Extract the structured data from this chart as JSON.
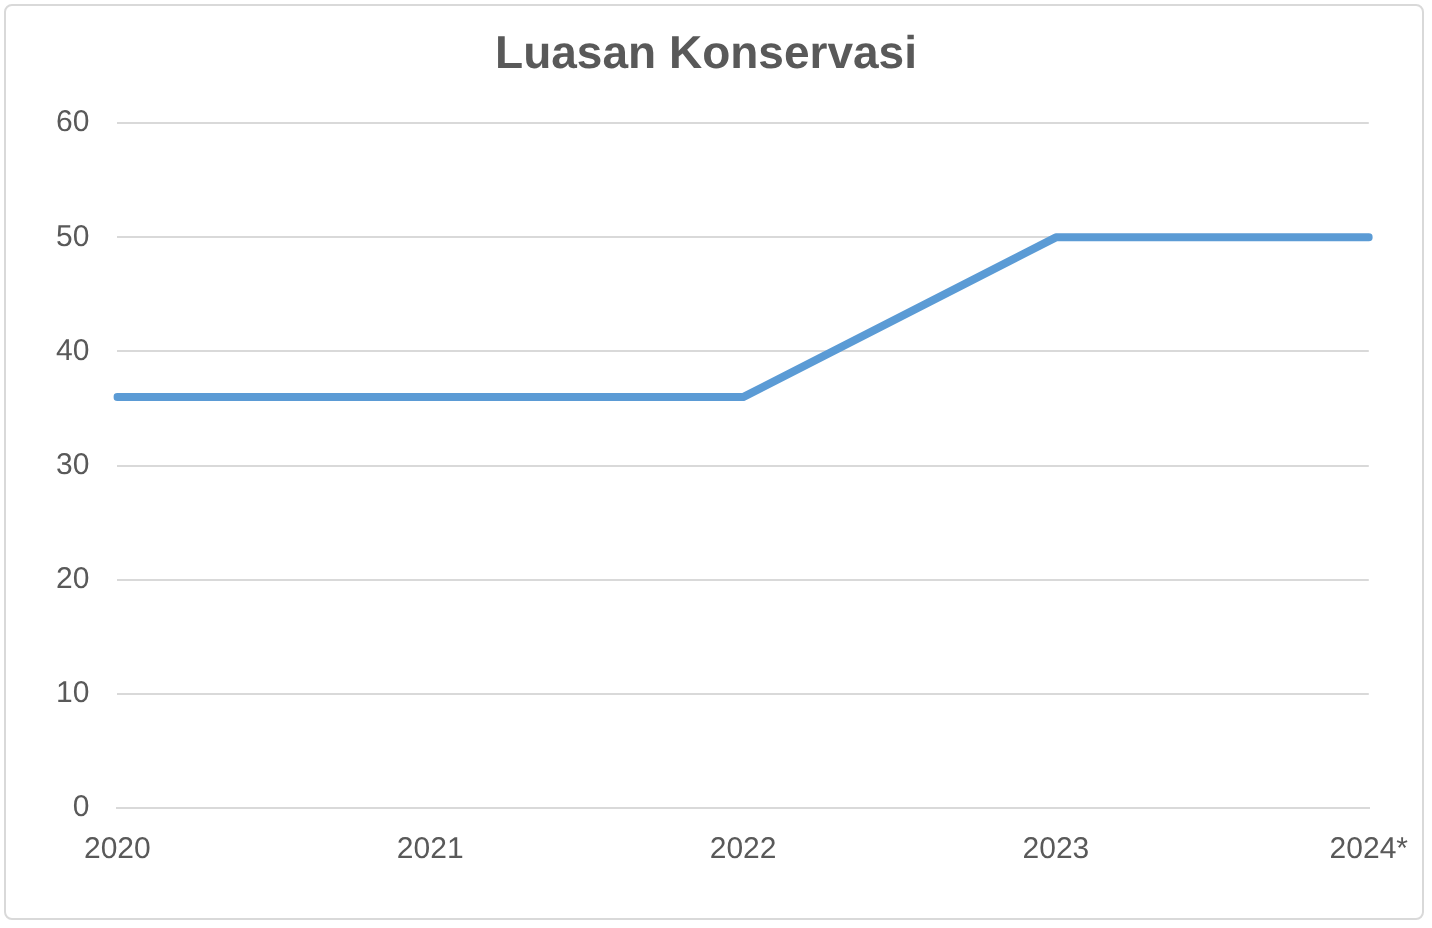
{
  "chart_data": {
    "type": "line",
    "title": "Luasan Konservasi",
    "categories": [
      "2020",
      "2021",
      "2022",
      "2023",
      "2024*"
    ],
    "series": [
      {
        "color": "#5b9bd5",
        "values": [
          36,
          36,
          36,
          50,
          50
        ]
      }
    ],
    "ylim": [
      0,
      60
    ],
    "yticks": [
      0,
      10,
      20,
      30,
      40,
      50,
      60
    ],
    "grid": "y",
    "legend": false,
    "marker": "none",
    "line_style": "solid"
  }
}
